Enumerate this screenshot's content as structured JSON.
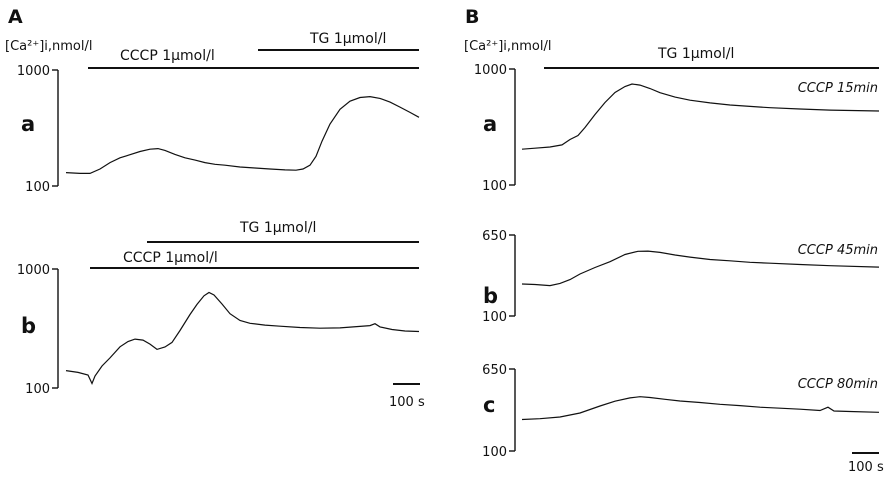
{
  "panels": {
    "A": {
      "letter": "A",
      "ylabel": "[Ca²⁺]i,nmol/l"
    },
    "B": {
      "letter": "B",
      "ylabel": "[Ca²⁺]i,nmol/l"
    }
  },
  "chart_data": [
    {
      "panel": "A",
      "trace": "a",
      "type": "line",
      "ylabel": "[Ca²⁺]i,nmol/l",
      "yscale": "log",
      "ylim": [
        100,
        1000
      ],
      "yticks": [
        "1000",
        "100"
      ],
      "xunit": "s",
      "bars": [
        {
          "label": "CCCP 1μmol/l",
          "start": 43,
          "end": 670
        },
        {
          "label": "TG 1μmol/l",
          "start": 370,
          "end": 670
        }
      ],
      "series": [
        {
          "values": [
            [
              0,
              136
            ],
            [
              40,
              134
            ],
            [
              90,
              172
            ],
            [
              160,
              218
            ],
            [
              240,
              170
            ],
            [
              360,
              143
            ],
            [
              400,
              150
            ],
            [
              440,
              230
            ],
            [
              520,
              540
            ],
            [
              590,
              520
            ],
            [
              670,
              370
            ]
          ]
        }
      ]
    },
    {
      "panel": "A",
      "trace": "b",
      "type": "line",
      "yscale": "log",
      "ylim": [
        100,
        1000
      ],
      "yticks": [
        "1000",
        "100"
      ],
      "xunit": "s",
      "bars": [
        {
          "label": "TG 1μmol/l",
          "start": 160,
          "end": 670
        },
        {
          "label": "CCCP 1μmol/l",
          "start": 48,
          "end": 670
        }
      ],
      "series": [
        {
          "values": [
            [
              0,
              140
            ],
            [
              46,
              130
            ],
            [
              60,
              168
            ],
            [
              130,
              280
            ],
            [
              195,
              222
            ],
            [
              280,
              600
            ],
            [
              320,
              440
            ],
            [
              380,
              340
            ],
            [
              500,
              322
            ],
            [
              590,
              336
            ],
            [
              670,
              312
            ]
          ]
        }
      ]
    },
    {
      "panel": "B",
      "trace": "a",
      "type": "line",
      "ylabel": "[Ca²⁺]i,nmol/l",
      "yscale": "log",
      "ylim": [
        100,
        1000
      ],
      "yticks": [
        "1000",
        "100"
      ],
      "xunit": "s",
      "annotation": "CCCP 15min",
      "bars": [
        {
          "label": "TG 1μmol/l",
          "start": 55,
          "end": 730
        }
      ],
      "series": [
        {
          "values": [
            [
              0,
              255
            ],
            [
              70,
              270
            ],
            [
              105,
              310
            ],
            [
              200,
              870
            ],
            [
              290,
              620
            ],
            [
              400,
              510
            ],
            [
              560,
              470
            ],
            [
              730,
              460
            ]
          ]
        }
      ]
    },
    {
      "panel": "B",
      "trace": "b",
      "type": "line",
      "yscale": "log",
      "ylim": [
        100,
        650
      ],
      "yticks": [
        "650",
        "100"
      ],
      "xunit": "s",
      "annotation": "CCCP 45min",
      "series": [
        {
          "values": [
            [
              0,
              250
            ],
            [
              50,
              245
            ],
            [
              110,
              280
            ],
            [
              240,
              430
            ],
            [
              400,
              380
            ],
            [
              560,
              350
            ],
            [
              730,
              335
            ]
          ]
        }
      ]
    },
    {
      "panel": "B",
      "trace": "c",
      "type": "line",
      "yscale": "log",
      "ylim": [
        100,
        650
      ],
      "yticks": [
        "650",
        "100"
      ],
      "xunit": "s",
      "annotation": "CCCP 80min",
      "series": [
        {
          "values": [
            [
              0,
              230
            ],
            [
              100,
              245
            ],
            [
              220,
              300
            ],
            [
              300,
              320
            ],
            [
              460,
              290
            ],
            [
              600,
              270
            ],
            [
              730,
              255
            ]
          ]
        }
      ]
    }
  ],
  "scalebars": [
    {
      "panel": "A",
      "label": "100 s",
      "seconds": 100
    },
    {
      "panel": "B",
      "label": "100 s",
      "seconds": 100
    }
  ]
}
